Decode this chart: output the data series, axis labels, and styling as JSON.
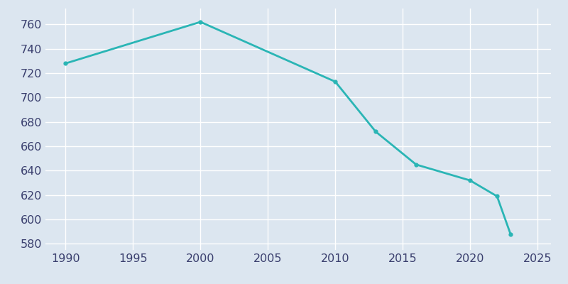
{
  "years": [
    1990,
    2000,
    2010,
    2013,
    2016,
    2020,
    2022,
    2023
  ],
  "population": [
    728,
    762,
    713,
    672,
    645,
    632,
    619,
    588
  ],
  "line_color": "#2ab5b5",
  "marker": "o",
  "marker_size": 3.5,
  "background_color": "#dce6f0",
  "grid_color": "#ffffff",
  "xlim": [
    1988.5,
    2026
  ],
  "ylim": [
    575,
    773
  ],
  "xticks": [
    1990,
    1995,
    2000,
    2005,
    2010,
    2015,
    2020,
    2025
  ],
  "yticks": [
    580,
    600,
    620,
    640,
    660,
    680,
    700,
    720,
    740,
    760
  ],
  "tick_label_color": "#3a3f6e",
  "tick_fontsize": 11.5,
  "linewidth": 2.0
}
